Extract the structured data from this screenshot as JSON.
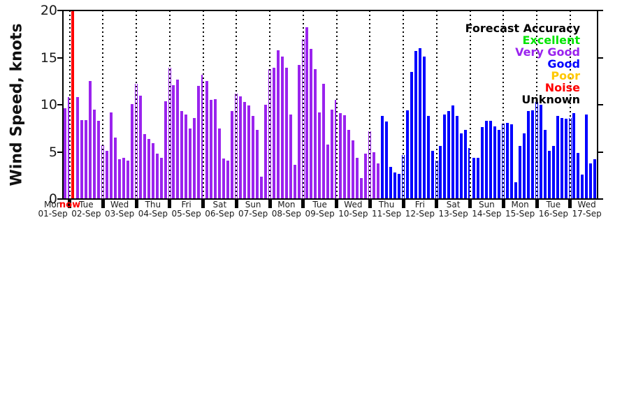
{
  "chart_data": {
    "type": "bar",
    "title": "",
    "ylabel": "Wind Speed, knots",
    "ylim": [
      0,
      20
    ],
    "yticks": [
      0,
      5,
      10,
      15,
      20
    ],
    "grid": "vertical-dotted-at-midnights",
    "bars_per_day": 8,
    "legend_position": "top-right",
    "series": [
      {
        "name": "Very Good",
        "color": "#9a23ee",
        "values": [
          9.6,
          10.8,
          null,
          10.8,
          8.4,
          8.4,
          12.5,
          9.5,
          8.3,
          5.7,
          5.1,
          9.2,
          6.5,
          4.2,
          4.4,
          4.1,
          10.1,
          12.2,
          11.0,
          6.9,
          6.4,
          5.9,
          4.8,
          4.4,
          10.4,
          13.9,
          12.1,
          12.7,
          9.3,
          9.0,
          7.5,
          8.6,
          12.0,
          13.2,
          12.5,
          10.5,
          10.6,
          7.5,
          4.3,
          4.1,
          9.3,
          11.2,
          10.9,
          10.3,
          9.9,
          8.8,
          7.3,
          2.4,
          10.0,
          13.8,
          13.9,
          15.8,
          15.1,
          13.9,
          9.0,
          3.6,
          14.2,
          17.0,
          18.2,
          15.9,
          13.8,
          9.2,
          12.2,
          5.8,
          9.5,
          10.5,
          9.1,
          8.9,
          7.3,
          6.2,
          4.4,
          2.2,
          4.8,
          7.2,
          5.0,
          3.8
        ]
      },
      {
        "name": "Good",
        "color": "#0000ff",
        "values": [
          8.8,
          8.2,
          3.4,
          2.8,
          2.7,
          4.7,
          9.4,
          13.5,
          15.7,
          16.0,
          15.1,
          8.8,
          5.1,
          4.1,
          5.6,
          9.0,
          9.3,
          9.9,
          8.8,
          7.0,
          7.3,
          5.4,
          4.4,
          4.4,
          7.6,
          8.3,
          8.3,
          7.7,
          7.3,
          8.0,
          8.1,
          7.9,
          1.8,
          5.6,
          7.0,
          9.3,
          9.4,
          10.3,
          10.0,
          7.3,
          5.1,
          5.6,
          8.8,
          8.6,
          8.5,
          8.6,
          9.1,
          4.9,
          2.6,
          9.0,
          3.8,
          4.2
        ]
      }
    ],
    "x_days": [
      {
        "name": "Mon",
        "date": "01-Sep"
      },
      {
        "name": "Tue",
        "date": "02-Sep"
      },
      {
        "name": "Wed",
        "date": "03-Sep"
      },
      {
        "name": "Thu",
        "date": "04-Sep"
      },
      {
        "name": "Fri",
        "date": "05-Sep"
      },
      {
        "name": "Sat",
        "date": "06-Sep"
      },
      {
        "name": "Sun",
        "date": "07-Sep"
      },
      {
        "name": "Mon",
        "date": "08-Sep"
      },
      {
        "name": "Tue",
        "date": "09-Sep"
      },
      {
        "name": "Wed",
        "date": "10-Sep"
      },
      {
        "name": "Thu",
        "date": "11-Sep"
      },
      {
        "name": "Fri",
        "date": "12-Sep"
      },
      {
        "name": "Sat",
        "date": "13-Sep"
      },
      {
        "name": "Sun",
        "date": "14-Sep"
      },
      {
        "name": "Mon",
        "date": "15-Sep"
      },
      {
        "name": "Tue",
        "date": "16-Sep"
      },
      {
        "name": "Wed",
        "date": "17-Sep"
      }
    ],
    "now_marker": {
      "label": "now",
      "color": "#ff0000"
    },
    "legend": {
      "title": "Forecast Accuracy",
      "entries": [
        {
          "label": "Excellent",
          "color": "#00e400"
        },
        {
          "label": "Very Good",
          "color": "#9a23ee"
        },
        {
          "label": "Good",
          "color": "#0000ff"
        },
        {
          "label": "Poor",
          "color": "#ffc800"
        },
        {
          "label": "Noise",
          "color": "#ff0000"
        },
        {
          "label": "Unknown",
          "color": "#000000"
        }
      ]
    }
  }
}
